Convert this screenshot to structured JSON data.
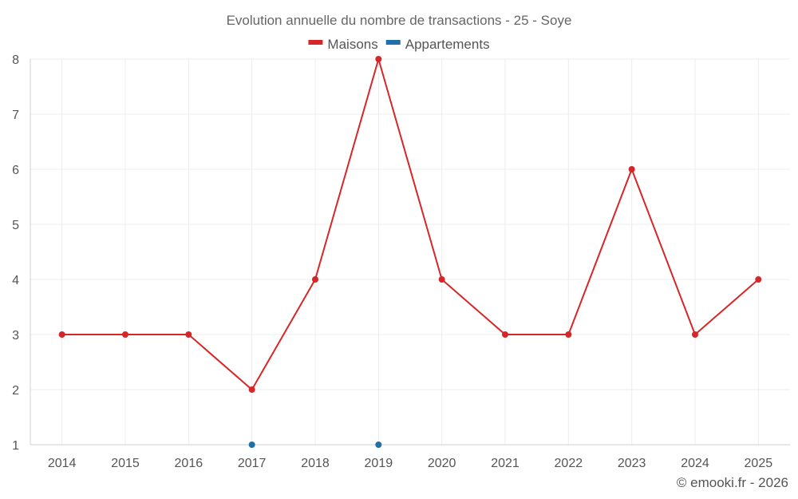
{
  "chart_data": {
    "type": "line",
    "title": "Evolution annuelle du nombre de transactions - 25 - Soye",
    "x": [
      "2014",
      "2015",
      "2016",
      "2017",
      "2018",
      "2019",
      "2020",
      "2021",
      "2022",
      "2023",
      "2024",
      "2025"
    ],
    "xlabel": "",
    "ylabel": "",
    "ylim": [
      1,
      8
    ],
    "yticks": [
      1,
      2,
      3,
      4,
      5,
      6,
      7,
      8
    ],
    "grid": true,
    "legend_position": "top-center",
    "series": [
      {
        "name": "Maisons",
        "color": "#d62728",
        "line": true,
        "values": [
          3,
          3,
          3,
          2,
          4,
          8,
          4,
          3,
          3,
          6,
          3,
          4
        ]
      },
      {
        "name": "Appartements",
        "color": "#1f6fa8",
        "line": false,
        "values": [
          null,
          null,
          null,
          1,
          null,
          1,
          null,
          null,
          null,
          null,
          null,
          null
        ]
      }
    ]
  },
  "footer": {
    "credit": "© emooki.fr - 2026"
  }
}
